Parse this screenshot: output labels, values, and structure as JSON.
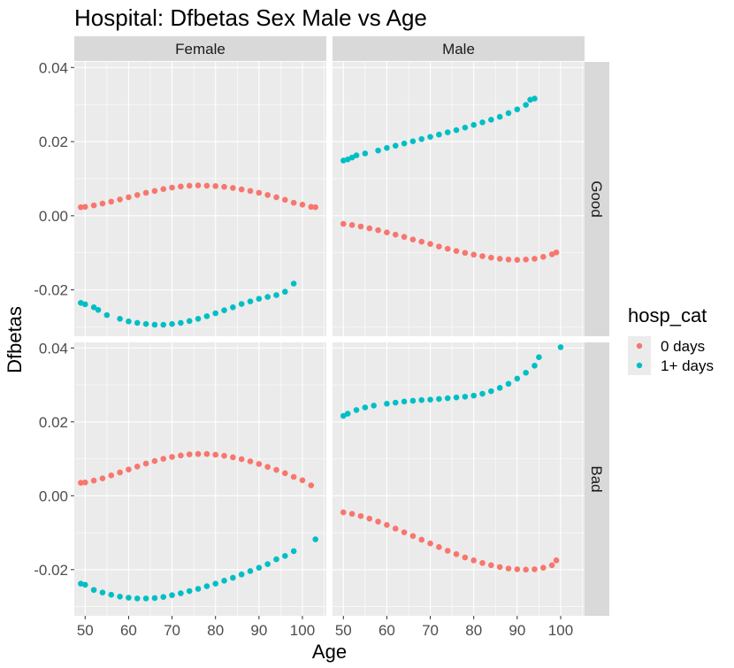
{
  "chart_data": {
    "type": "scatter",
    "title": "Hospital: Dfbetas Sex Male vs Age",
    "xlabel": "Age",
    "ylabel": "Dfbetas",
    "xlim": [
      47.5,
      105.5
    ],
    "ylim": [
      -0.0325,
      0.0415
    ],
    "x_ticks": [
      50,
      60,
      70,
      80,
      90,
      100
    ],
    "y_ticks": [
      0.04,
      0.02,
      0.0,
      -0.02
    ],
    "y_tick_labels": [
      "0.04",
      "0.02",
      "0.00",
      "-0.02"
    ],
    "grid": true,
    "col_facets": [
      "Female",
      "Male"
    ],
    "row_facets": [
      "Good",
      "Bad"
    ],
    "legend": {
      "title": "hosp_cat",
      "position": "right",
      "entries": [
        {
          "label": "0 days",
          "color": "#F8766D"
        },
        {
          "label": "1+ days",
          "color": "#00BFC4"
        }
      ]
    },
    "panels": [
      {
        "col": "Female",
        "row": "Good",
        "series": [
          {
            "name": "0 days",
            "color": "#F8766D",
            "x": [
              49,
              50,
              52,
              54,
              56,
              58,
              60,
              62,
              64,
              66,
              68,
              70,
              72,
              74,
              76,
              78,
              80,
              82,
              84,
              86,
              88,
              90,
              92,
              94,
              96,
              98,
              100,
              102,
              103
            ],
            "y": [
              0.0023,
              0.0024,
              0.0028,
              0.0033,
              0.0038,
              0.0044,
              0.005,
              0.0056,
              0.0062,
              0.0067,
              0.0072,
              0.0076,
              0.0079,
              0.0081,
              0.0082,
              0.0081,
              0.008,
              0.0078,
              0.0075,
              0.0071,
              0.0067,
              0.0062,
              0.0056,
              0.005,
              0.0043,
              0.0035,
              0.003,
              0.0024,
              0.0023
            ]
          },
          {
            "name": "1+ days",
            "color": "#00BFC4",
            "x": [
              49,
              50,
              52,
              53,
              55,
              58,
              60,
              62,
              64,
              66,
              68,
              70,
              72,
              74,
              76,
              78,
              80,
              82,
              84,
              86,
              88,
              90,
              92,
              94,
              96,
              98
            ],
            "y": [
              -0.0235,
              -0.0239,
              -0.0247,
              -0.0254,
              -0.0268,
              -0.0278,
              -0.0285,
              -0.0289,
              -0.0292,
              -0.0294,
              -0.0294,
              -0.0292,
              -0.0289,
              -0.0284,
              -0.0278,
              -0.0271,
              -0.0263,
              -0.0255,
              -0.0247,
              -0.0238,
              -0.0231,
              -0.0224,
              -0.0219,
              -0.0214,
              -0.0205,
              -0.0183
            ]
          }
        ]
      },
      {
        "col": "Male",
        "row": "Good",
        "series": [
          {
            "name": "0 days",
            "color": "#F8766D",
            "x": [
              50,
              52,
              54,
              56,
              58,
              60,
              62,
              64,
              66,
              68,
              70,
              72,
              74,
              76,
              78,
              80,
              82,
              84,
              86,
              88,
              90,
              92,
              94,
              96,
              98,
              99
            ],
            "y": [
              -0.0022,
              -0.0025,
              -0.0029,
              -0.0034,
              -0.0039,
              -0.0045,
              -0.0051,
              -0.0057,
              -0.0064,
              -0.007,
              -0.0076,
              -0.0083,
              -0.0089,
              -0.0095,
              -0.01,
              -0.0105,
              -0.0109,
              -0.0113,
              -0.0116,
              -0.0118,
              -0.0119,
              -0.0118,
              -0.0116,
              -0.0111,
              -0.0104,
              -0.0099
            ]
          },
          {
            "name": "1+ days",
            "color": "#00BFC4",
            "x": [
              50,
              51,
              52,
              53,
              55,
              58,
              60,
              62,
              64,
              66,
              68,
              70,
              72,
              74,
              76,
              78,
              80,
              82,
              84,
              86,
              88,
              90,
              92,
              93,
              94
            ],
            "y": [
              0.0149,
              0.0152,
              0.0157,
              0.0163,
              0.0168,
              0.0176,
              0.0183,
              0.0189,
              0.0195,
              0.0201,
              0.0207,
              0.0213,
              0.0219,
              0.0225,
              0.0231,
              0.0238,
              0.0245,
              0.0252,
              0.0259,
              0.0267,
              0.0277,
              0.0287,
              0.0299,
              0.0313,
              0.0316
            ]
          }
        ]
      },
      {
        "col": "Female",
        "row": "Bad",
        "series": [
          {
            "name": "0 days",
            "color": "#F8766D",
            "x": [
              49,
              50,
              52,
              54,
              56,
              58,
              60,
              62,
              64,
              66,
              68,
              70,
              72,
              74,
              76,
              78,
              80,
              82,
              84,
              86,
              88,
              90,
              92,
              94,
              96,
              98,
              100,
              102
            ],
            "y": [
              0.0035,
              0.0036,
              0.0041,
              0.0047,
              0.0055,
              0.0063,
              0.0071,
              0.0079,
              0.0087,
              0.0094,
              0.01,
              0.0105,
              0.0109,
              0.0112,
              0.0113,
              0.0113,
              0.0111,
              0.0108,
              0.0104,
              0.0099,
              0.0093,
              0.0086,
              0.0078,
              0.007,
              0.0061,
              0.0051,
              0.0042,
              0.0028
            ]
          },
          {
            "name": "1+ days",
            "color": "#00BFC4",
            "x": [
              49,
              50,
              52,
              54,
              56,
              58,
              60,
              62,
              64,
              66,
              68,
              70,
              72,
              74,
              76,
              78,
              80,
              82,
              84,
              86,
              88,
              90,
              92,
              94,
              96,
              98,
              103
            ],
            "y": [
              -0.0238,
              -0.0241,
              -0.0255,
              -0.0262,
              -0.0268,
              -0.0273,
              -0.0276,
              -0.0278,
              -0.0278,
              -0.0277,
              -0.0274,
              -0.0269,
              -0.0264,
              -0.0258,
              -0.0252,
              -0.0245,
              -0.0238,
              -0.023,
              -0.0222,
              -0.0213,
              -0.0204,
              -0.0195,
              -0.0185,
              -0.0172,
              -0.0163,
              -0.015,
              -0.0118
            ]
          }
        ]
      },
      {
        "col": "Male",
        "row": "Bad",
        "series": [
          {
            "name": "0 days",
            "color": "#F8766D",
            "x": [
              50,
              52,
              54,
              56,
              58,
              60,
              62,
              64,
              66,
              68,
              70,
              72,
              74,
              76,
              78,
              80,
              82,
              84,
              86,
              88,
              90,
              92,
              94,
              96,
              98,
              99
            ],
            "y": [
              -0.0045,
              -0.0049,
              -0.0055,
              -0.0062,
              -0.007,
              -0.0079,
              -0.0089,
              -0.0099,
              -0.0109,
              -0.0119,
              -0.0129,
              -0.0139,
              -0.0149,
              -0.0158,
              -0.0167,
              -0.0175,
              -0.0182,
              -0.0188,
              -0.0193,
              -0.0197,
              -0.0199,
              -0.02,
              -0.0199,
              -0.0195,
              -0.0188,
              -0.0175
            ]
          },
          {
            "name": "1+ days",
            "color": "#00BFC4",
            "x": [
              50,
              51,
              53,
              55,
              57,
              60,
              62,
              64,
              66,
              68,
              70,
              72,
              74,
              76,
              78,
              80,
              82,
              84,
              86,
              88,
              90,
              92,
              94,
              95,
              100
            ],
            "y": [
              0.0216,
              0.0222,
              0.0232,
              0.0239,
              0.0244,
              0.0249,
              0.0252,
              0.0255,
              0.0257,
              0.0259,
              0.026,
              0.0262,
              0.0264,
              0.0266,
              0.0268,
              0.0271,
              0.0276,
              0.0283,
              0.0292,
              0.0303,
              0.0317,
              0.0333,
              0.0352,
              0.0375,
              0.0402
            ]
          }
        ]
      }
    ]
  }
}
